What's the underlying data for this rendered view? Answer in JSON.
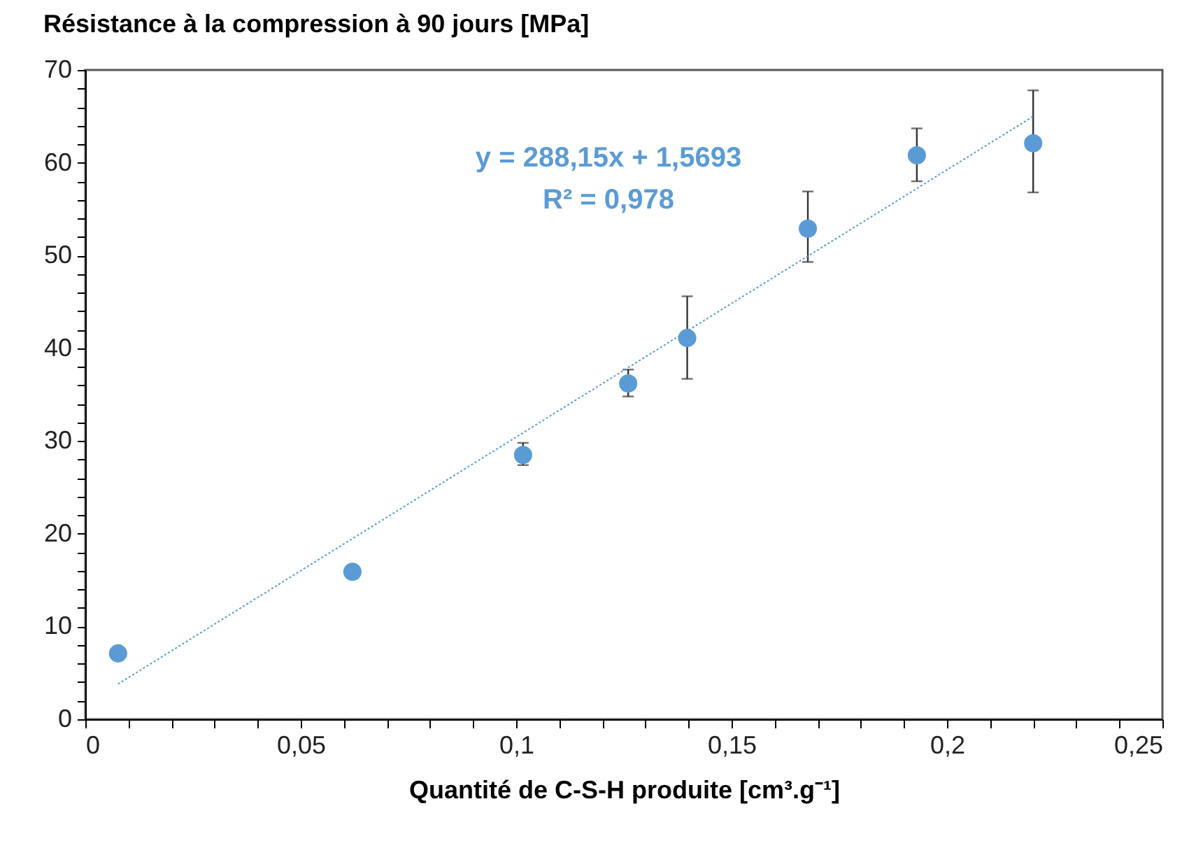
{
  "chart_data": {
    "type": "scatter",
    "title": "Résistance à la compression à 90 jours [MPa]",
    "xlabel": "Quantité de C-S-H produite [cm³.g⁻¹]",
    "x": [
      0.0076,
      0.062,
      0.1016,
      0.126,
      0.1397,
      0.1677,
      0.193,
      0.22
    ],
    "series": [
      {
        "color": "#5b9bd5",
        "values": [
          7.1,
          15.9,
          28.5,
          36.2,
          41.1,
          52.9,
          60.8,
          62.1
        ],
        "errors": [
          null,
          null,
          [
            27.4,
            29.8
          ],
          [
            34.8,
            37.7
          ],
          [
            36.7,
            45.6
          ],
          [
            49.3,
            56.9
          ],
          [
            58.0,
            63.7
          ],
          [
            56.8,
            67.8
          ]
        ]
      },
      {
        "type": "line",
        "color": "#5b9bd5",
        "line_style": "dotted",
        "marker": "none",
        "x": [
          0.0076,
          0.22
        ],
        "values": [
          3.8,
          65
        ]
      }
    ],
    "annotations": [
      "y = 288,15x + 1,5693",
      "R² = 0,978"
    ],
    "xlim": [
      0,
      0.25
    ],
    "ylim": [
      0,
      70
    ],
    "xticks": [
      {
        "value": 0,
        "label": "0"
      },
      {
        "value": 0.01,
        "label": null
      },
      {
        "value": 0.02,
        "label": null
      },
      {
        "value": 0.03,
        "label": null
      },
      {
        "value": 0.04,
        "label": null
      },
      {
        "value": 0.05,
        "label": "0,05"
      },
      {
        "value": 0.06,
        "label": null
      },
      {
        "value": 0.07,
        "label": null
      },
      {
        "value": 0.08,
        "label": null
      },
      {
        "value": 0.09,
        "label": null
      },
      {
        "value": 0.1,
        "label": "0,1"
      },
      {
        "value": 0.11,
        "label": null
      },
      {
        "value": 0.12,
        "label": null
      },
      {
        "value": 0.13,
        "label": null
      },
      {
        "value": 0.14,
        "label": null
      },
      {
        "value": 0.15,
        "label": "0,15"
      },
      {
        "value": 0.16,
        "label": null
      },
      {
        "value": 0.17,
        "label": null
      },
      {
        "value": 0.18,
        "label": null
      },
      {
        "value": 0.19,
        "label": null
      },
      {
        "value": 0.2,
        "label": "0,2"
      },
      {
        "value": 0.21,
        "label": null
      },
      {
        "value": 0.22,
        "label": null
      },
      {
        "value": 0.23,
        "label": null
      },
      {
        "value": 0.24,
        "label": null
      },
      {
        "value": 0.25,
        "label": "0,25"
      }
    ],
    "yticks": [
      0,
      {
        "value": 2,
        "label": null
      },
      {
        "value": 4,
        "label": null
      },
      {
        "value": 6,
        "label": null
      },
      {
        "value": 8,
        "label": null
      },
      10,
      {
        "value": 12,
        "label": null
      },
      {
        "value": 14,
        "label": null
      },
      {
        "value": 16,
        "label": null
      },
      {
        "value": 18,
        "label": null
      },
      20,
      {
        "value": 22,
        "label": null
      },
      {
        "value": 24,
        "label": null
      },
      {
        "value": 26,
        "label": null
      },
      {
        "value": 28,
        "label": null
      },
      30,
      {
        "value": 32,
        "label": null
      },
      {
        "value": 34,
        "label": null
      },
      {
        "value": 36,
        "label": null
      },
      {
        "value": 38,
        "label": null
      },
      40,
      {
        "value": 42,
        "label": null
      },
      {
        "value": 44,
        "label": null
      },
      {
        "value": 46,
        "label": null
      },
      {
        "value": 48,
        "label": null
      },
      50,
      {
        "value": 52,
        "label": null
      },
      {
        "value": 54,
        "label": null
      },
      {
        "value": 56,
        "label": null
      },
      {
        "value": 58,
        "label": null
      },
      60,
      {
        "value": 62,
        "label": null
      },
      {
        "value": 64,
        "label": null
      },
      {
        "value": 66,
        "label": null
      },
      {
        "value": 68,
        "label": null
      },
      70
    ],
    "grid": false,
    "marker": "circle"
  }
}
